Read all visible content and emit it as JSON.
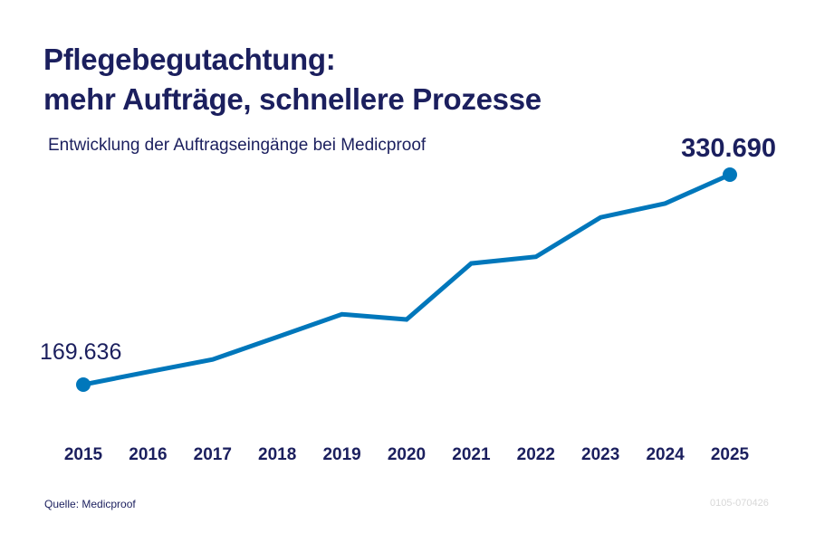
{
  "title_line1": "Pflegebegutachtung:",
  "title_line2": "mehr Aufträge, schnellere Prozesse",
  "subtitle": "Entwicklung der Auftragseingänge bei Medicproof",
  "footer": {
    "source": "Quelle: Medicproof",
    "code": "0105-070426"
  },
  "colors": {
    "line": "#0077bb",
    "text": "#1b1f5e"
  },
  "chart_data": {
    "type": "line",
    "title": "Pflegebegutachtung: mehr Aufträge, schnellere Prozesse",
    "subtitle": "Entwicklung der Auftragseingänge bei Medicproof",
    "xlabel": "",
    "ylabel": "",
    "x": [
      "2015",
      "2016",
      "2017",
      "2018",
      "2019",
      "2020",
      "2021",
      "2022",
      "2023",
      "2024",
      "2025"
    ],
    "values": [
      169636,
      179400,
      188900,
      206200,
      223600,
      219600,
      262600,
      267700,
      297900,
      308600,
      330690
    ],
    "annotations": [
      {
        "x": "2015",
        "label": "169.636"
      },
      {
        "x": "2025",
        "label": "330.690"
      }
    ],
    "grid": false,
    "legend": "none"
  }
}
